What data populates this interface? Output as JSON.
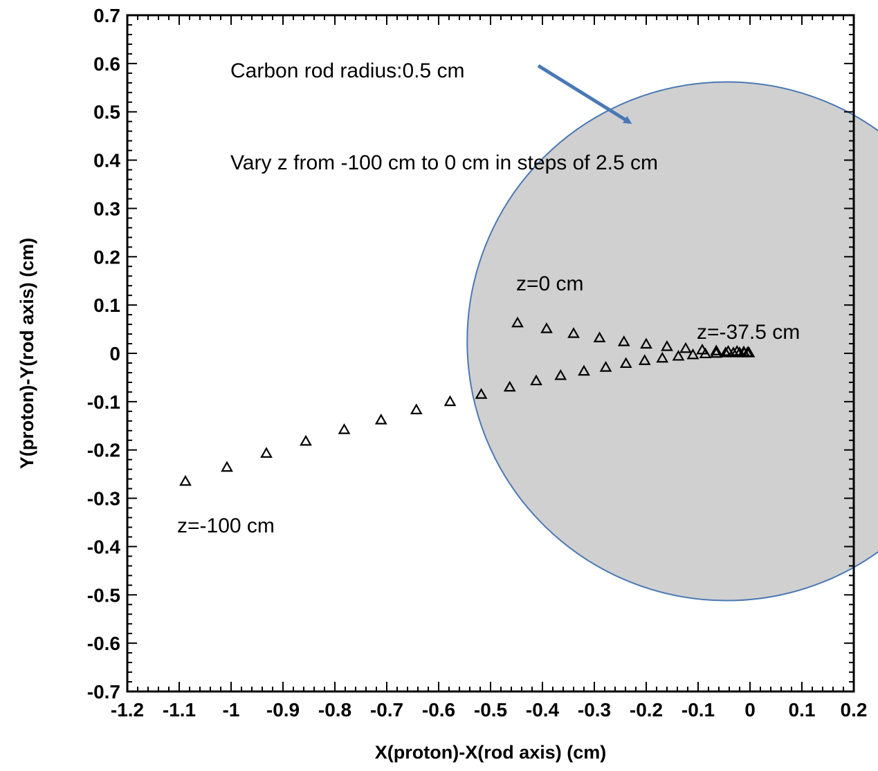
{
  "colors": {
    "rod_fill": "#d0d0d0",
    "rod_stroke": "#4a78b5",
    "arrow": "#4a78b5",
    "marker": "#000000"
  },
  "chart_data": {
    "type": "scatter",
    "title": "",
    "xlabel": "X(proton)-X(rod axis) (cm)",
    "ylabel": "Y(proton)-Y(rod axis) (cm)",
    "xlim": [
      -1.2,
      0.2
    ],
    "ylim": [
      -0.7,
      0.7
    ],
    "x_ticks": [
      "-1.2",
      "-1.1",
      "-1",
      "-0.9",
      "-0.8",
      "-0.7",
      "-0.6",
      "-0.5",
      "-0.4",
      "-0.3",
      "-0.2",
      "-0.1",
      "0",
      "0.1",
      "0.2"
    ],
    "y_ticks": [
      "0.7",
      "0.6",
      "0.5",
      "0.4",
      "0.3",
      "0.2",
      "0.1",
      "0",
      "-0.1",
      "-0.2",
      "-0.3",
      "-0.4",
      "-0.5",
      "-0.6",
      "-0.7"
    ],
    "grid": false,
    "marker": "open-triangle",
    "rod": {
      "center": [
        -0.045,
        0.025
      ],
      "radius": 0.5
    },
    "series": [
      {
        "points": [
          [
            -1.088,
            -0.265
          ],
          [
            -1.008,
            -0.236
          ],
          [
            -0.932,
            -0.207
          ],
          [
            -0.856,
            -0.182
          ],
          [
            -0.782,
            -0.158
          ],
          [
            -0.711,
            -0.138
          ],
          [
            -0.643,
            -0.117
          ],
          [
            -0.578,
            -0.1
          ],
          [
            -0.518,
            -0.085
          ],
          [
            -0.463,
            -0.07
          ],
          [
            -0.412,
            -0.057
          ],
          [
            -0.365,
            -0.046
          ],
          [
            -0.32,
            -0.037
          ],
          [
            -0.278,
            -0.029
          ],
          [
            -0.239,
            -0.021
          ],
          [
            -0.203,
            -0.015
          ],
          [
            -0.169,
            -0.01
          ],
          [
            -0.138,
            -0.006
          ],
          [
            -0.11,
            -0.003
          ],
          [
            -0.086,
            -0.001
          ],
          [
            -0.065,
            0.0
          ],
          [
            -0.047,
            0.001
          ],
          [
            -0.032,
            0.001
          ],
          [
            -0.02,
            0.001
          ],
          [
            -0.011,
            0.001
          ],
          [
            -0.005,
            0.001
          ],
          [
            -0.002,
            0.001
          ],
          [
            -0.003,
            0.002
          ],
          [
            -0.012,
            0.003
          ],
          [
            -0.025,
            0.004
          ],
          [
            -0.042,
            0.004
          ],
          [
            -0.065,
            0.005
          ],
          [
            -0.092,
            0.007
          ],
          [
            -0.124,
            0.01
          ],
          [
            -0.16,
            0.014
          ],
          [
            -0.2,
            0.019
          ],
          [
            -0.243,
            0.024
          ],
          [
            -0.29,
            0.032
          ],
          [
            -0.34,
            0.041
          ],
          [
            -0.392,
            0.051
          ],
          [
            -0.448,
            0.063
          ]
        ]
      }
    ],
    "annotations": {
      "rod_radius": "Carbon rod radius:0.5 cm",
      "vary_z": "Vary z from -100 cm to 0 cm in steps of 2.5 cm",
      "z0": "z=0 cm",
      "z375": "z=-37.5 cm",
      "z100": "z=-100 cm"
    }
  }
}
